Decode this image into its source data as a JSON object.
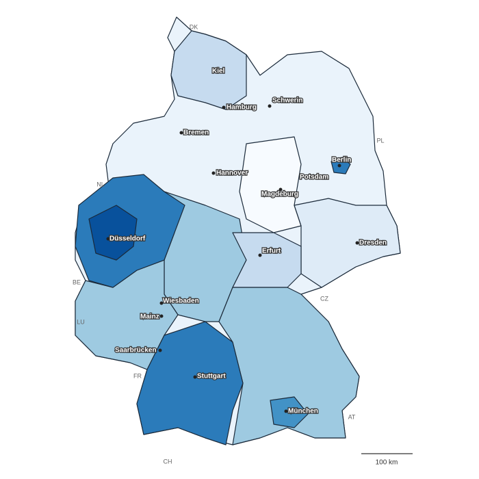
{
  "cities": [
    "Kiel",
    "Hamburg",
    "Schwerin",
    "Bremen",
    "Berlin",
    "Hannover",
    "Potsdam",
    "Magdeburg",
    "Düsseldorf",
    "Dresden",
    "Erfurt",
    "Wiesbaden",
    "Mainz",
    "Saarbrücken",
    "Stuttgart",
    "München"
  ],
  "countries": [
    "DK",
    "PL",
    "NL",
    "BE",
    "CZ",
    "LU",
    "FR",
    "AT",
    "CH"
  ],
  "scale_bar": "100 km"
}
